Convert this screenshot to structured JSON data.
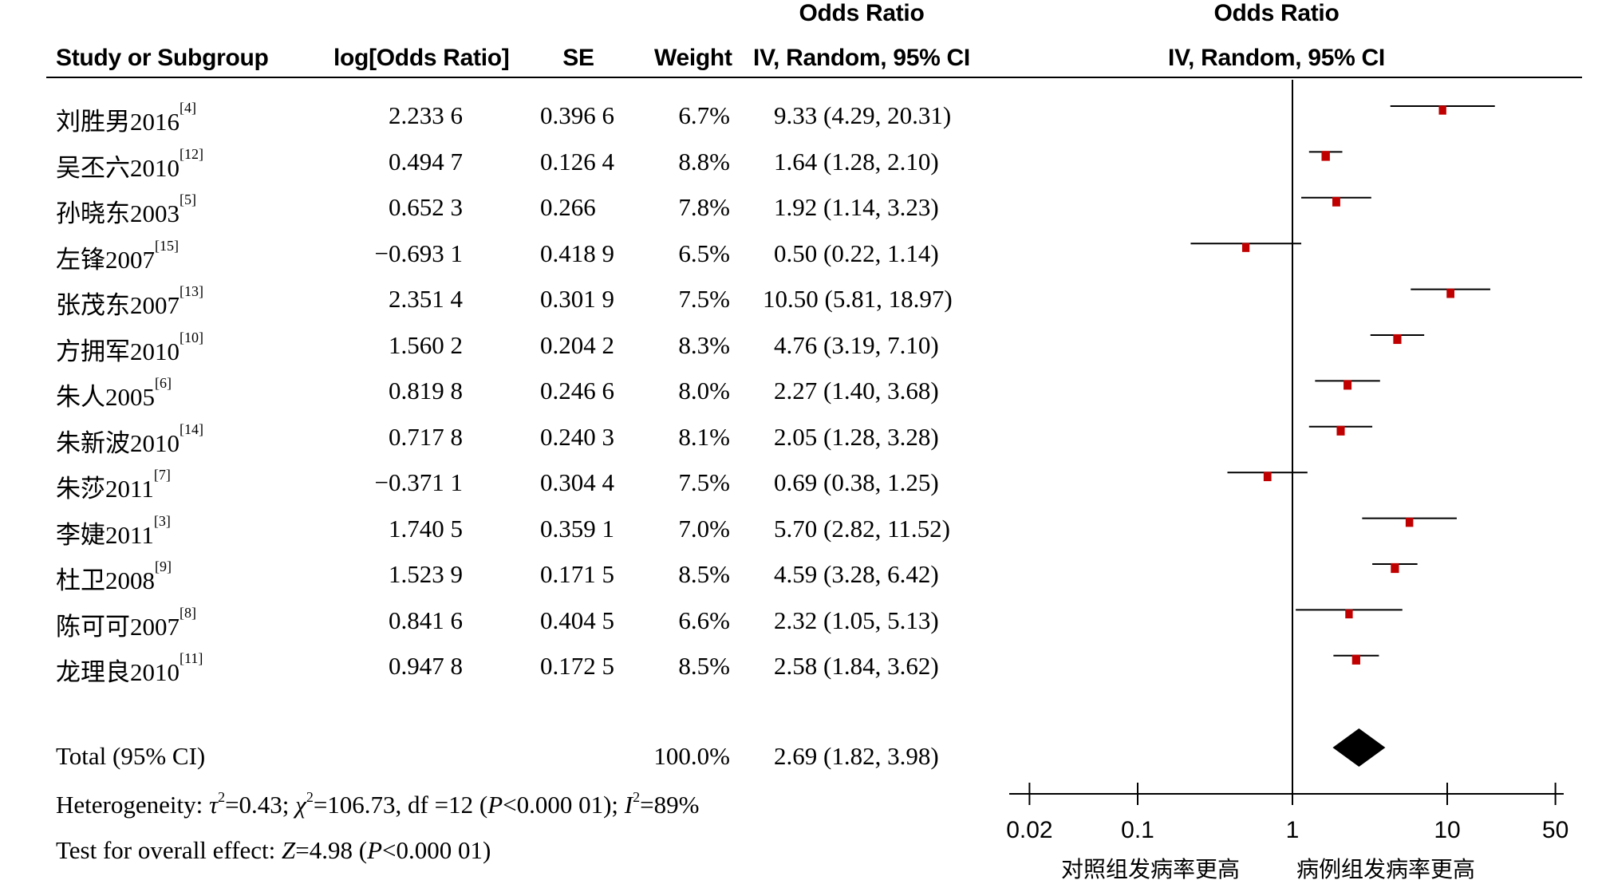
{
  "headers": {
    "study": "Study or Subgroup",
    "log_or": "log[Odds Ratio]",
    "se": "SE",
    "weight": "Weight",
    "or_top": "Odds Ratio",
    "or_bottom": "IV, Random, 95% CI",
    "plot_top": "Odds Ratio",
    "plot_bottom": "IV, Random, 95% CI"
  },
  "rows": [
    {
      "name": "刘胜男2016",
      "ref": "[4]",
      "log_or": "2.233 6",
      "se": "0.396 6",
      "weight": "6.7%",
      "ci_text": "9.33 (4.29, 20.31)"
    },
    {
      "name": "吴丕六2010",
      "ref": "[12]",
      "log_or": "0.494 7",
      "se": "0.126 4",
      "weight": "8.8%",
      "ci_text": "1.64 (1.28, 2.10)"
    },
    {
      "name": "孙晓东2003",
      "ref": "[5]",
      "log_or": "0.652 3",
      "se": "0.266",
      "weight": "7.8%",
      "ci_text": "1.92 (1.14, 3.23)"
    },
    {
      "name": "左锋2007",
      "ref": "[15]",
      "log_or": "−0.693 1",
      "se": "0.418 9",
      "weight": "6.5%",
      "ci_text": "0.50 (0.22, 1.14)"
    },
    {
      "name": "张茂东2007",
      "ref": "[13]",
      "log_or": "2.351 4",
      "se": "0.301 9",
      "weight": "7.5%",
      "ci_text": "10.50 (5.81, 18.97)"
    },
    {
      "name": "方拥军2010",
      "ref": "[10]",
      "log_or": "1.560 2",
      "se": "0.204 2",
      "weight": "8.3%",
      "ci_text": "4.76 (3.19, 7.10)"
    },
    {
      "name": "朱人2005",
      "ref": "[6]",
      "log_or": "0.819 8",
      "se": "0.246 6",
      "weight": "8.0%",
      "ci_text": "2.27 (1.40, 3.68)"
    },
    {
      "name": "朱新波2010",
      "ref": "[14]",
      "log_or": "0.717 8",
      "se": "0.240 3",
      "weight": "8.1%",
      "ci_text": "2.05 (1.28, 3.28)"
    },
    {
      "name": "朱莎2011",
      "ref": "[7]",
      "log_or": "−0.371 1",
      "se": "0.304 4",
      "weight": "7.5%",
      "ci_text": "0.69 (0.38, 1.25)"
    },
    {
      "name": "李婕2011",
      "ref": "[3]",
      "log_or": "1.740 5",
      "se": "0.359 1",
      "weight": "7.0%",
      "ci_text": "5.70 (2.82, 11.52)"
    },
    {
      "name": "杜卫2008",
      "ref": "[9]",
      "log_or": "1.523 9",
      "se": "0.171 5",
      "weight": "8.5%",
      "ci_text": "4.59 (3.28, 6.42)"
    },
    {
      "name": "陈可可2007",
      "ref": "[8]",
      "log_or": "0.841 6",
      "se": "0.404 5",
      "weight": "6.6%",
      "ci_text": "2.32 (1.05, 5.13)"
    },
    {
      "name": "龙理良2010",
      "ref": "[11]",
      "log_or": "0.947 8",
      "se": "0.172 5",
      "weight": "8.5%",
      "ci_text": "2.58 (1.84, 3.62)"
    }
  ],
  "total": {
    "label": "Total (95% CI)",
    "weight": "100.0%",
    "ci_text": "2.69 (1.82, 3.98)"
  },
  "heterogeneity": {
    "prefix": "Heterogeneity: ",
    "tau2": "τ",
    "tau2_rest": "=0.43; ",
    "chi": "χ",
    "chi_rest": "=106.73, df =12 (",
    "p": "P",
    "p_rest": "<0.000 01); ",
    "i": "I",
    "i_rest": "=89%"
  },
  "overall": {
    "prefix": "Test for overall effect: ",
    "z": "Z",
    "z_rest": "=4.98 (",
    "p": "P",
    "p_rest": "<0.000 01)"
  },
  "axis_labels": {
    "left": "对照组发病率更高",
    "right": "病例组发病率更高"
  },
  "colors": {
    "marker": "#c00000",
    "line": "#000000"
  },
  "chart_data": {
    "type": "forest",
    "scale": "log",
    "xlim": [
      0.02,
      50
    ],
    "ticks": [
      0.02,
      0.1,
      1,
      10,
      50
    ],
    "reference_line": 1,
    "studies": [
      {
        "name": "刘胜男2016",
        "or": 9.33,
        "lo": 4.29,
        "hi": 20.31,
        "weight": 6.7
      },
      {
        "name": "吴丕六2010",
        "or": 1.64,
        "lo": 1.28,
        "hi": 2.1,
        "weight": 8.8
      },
      {
        "name": "孙晓东2003",
        "or": 1.92,
        "lo": 1.14,
        "hi": 3.23,
        "weight": 7.8
      },
      {
        "name": "左锋2007",
        "or": 0.5,
        "lo": 0.22,
        "hi": 1.14,
        "weight": 6.5
      },
      {
        "name": "张茂东2007",
        "or": 10.5,
        "lo": 5.81,
        "hi": 18.97,
        "weight": 7.5
      },
      {
        "name": "方拥军2010",
        "or": 4.76,
        "lo": 3.19,
        "hi": 7.1,
        "weight": 8.3
      },
      {
        "name": "朱人2005",
        "or": 2.27,
        "lo": 1.4,
        "hi": 3.68,
        "weight": 8.0
      },
      {
        "name": "朱新波2010",
        "or": 2.05,
        "lo": 1.28,
        "hi": 3.28,
        "weight": 8.1
      },
      {
        "name": "朱莎2011",
        "or": 0.69,
        "lo": 0.38,
        "hi": 1.25,
        "weight": 7.5
      },
      {
        "name": "李婕2011",
        "or": 5.7,
        "lo": 2.82,
        "hi": 11.52,
        "weight": 7.0
      },
      {
        "name": "杜卫2008",
        "or": 4.59,
        "lo": 3.28,
        "hi": 6.42,
        "weight": 8.5
      },
      {
        "name": "陈可可2007",
        "or": 2.32,
        "lo": 1.05,
        "hi": 5.13,
        "weight": 6.6
      },
      {
        "name": "龙理良2010",
        "or": 2.58,
        "lo": 1.84,
        "hi": 3.62,
        "weight": 8.5
      }
    ],
    "total": {
      "or": 2.69,
      "lo": 1.82,
      "hi": 3.98
    }
  }
}
